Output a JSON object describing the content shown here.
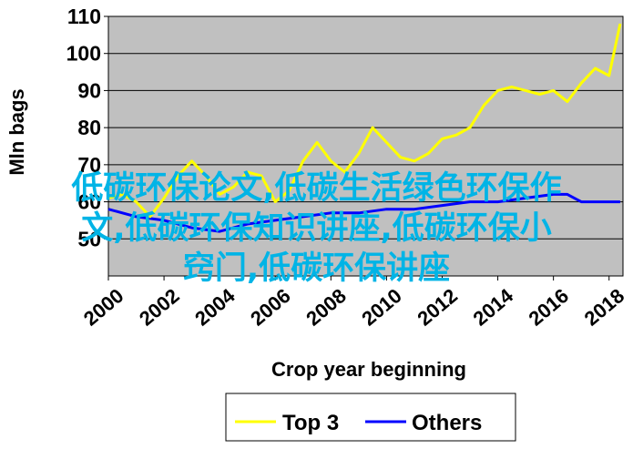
{
  "chart_data": {
    "type": "line",
    "ylabel": "Mln bags",
    "xlabel": "Crop year beginning",
    "ylim": [
      40,
      110
    ],
    "yticks": [
      50,
      60,
      70,
      80,
      90,
      100,
      110
    ],
    "xlim": [
      2000,
      2018.5
    ],
    "xticks": [
      2000,
      2002,
      2004,
      2006,
      2008,
      2010,
      2012,
      2014,
      2016,
      2018
    ],
    "grid": "horizontal",
    "legend_position": "bottom",
    "colors": {
      "plot_bg": "#c0c0c0",
      "top3": "#ffff00",
      "others": "#0000ff"
    },
    "series": [
      {
        "name": "Top 3",
        "color": "#ffff00",
        "x": [
          2000,
          2000.5,
          2001,
          2001.5,
          2002,
          2002.5,
          2003,
          2003.5,
          2004,
          2004.5,
          2005,
          2005.5,
          2006,
          2006.5,
          2007,
          2007.5,
          2008,
          2008.5,
          2009,
          2009.5,
          2010,
          2010.5,
          2011,
          2011.5,
          2012,
          2012.5,
          2013,
          2013.5,
          2014,
          2014.5,
          2015,
          2015.5,
          2016,
          2016.5,
          2017,
          2017.5,
          2018,
          2018.4
        ],
        "values": [
          61,
          62,
          60,
          56,
          61,
          67,
          71,
          67,
          62,
          64,
          68,
          67,
          60,
          63,
          71,
          76,
          71,
          68,
          73,
          80,
          76,
          72,
          71,
          73,
          77,
          78,
          80,
          86,
          90,
          91,
          90,
          89,
          90,
          87,
          92,
          96,
          94,
          108
        ]
      },
      {
        "name": "Others",
        "color": "#0000ff",
        "x": [
          2000,
          2001,
          2002,
          2003,
          2004,
          2005,
          2006,
          2007,
          2008,
          2009,
          2010,
          2011,
          2012,
          2013,
          2014,
          2015,
          2016,
          2016.5,
          2017,
          2018,
          2018.4
        ],
        "values": [
          58,
          56,
          55,
          53,
          52,
          54,
          55,
          56,
          57,
          57,
          58,
          58,
          59,
          60,
          60,
          61,
          62,
          62,
          60,
          60,
          60
        ]
      }
    ]
  },
  "overlay_text": {
    "line1": "低碳环保论文,低碳生活绿色环保作",
    "line2": "文,低碳环保知识讲座,低碳环保小",
    "line3": "窍门,低碳环保讲座"
  }
}
